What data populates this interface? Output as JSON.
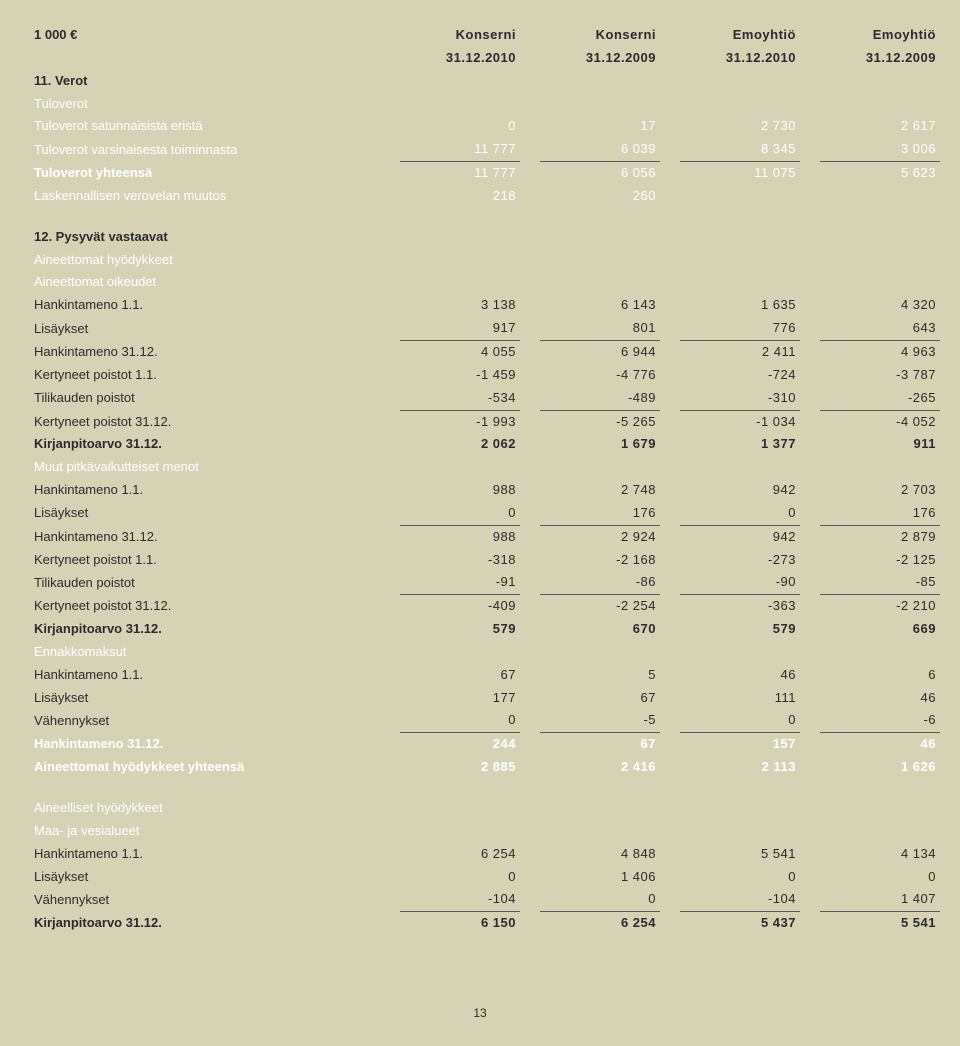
{
  "header": {
    "unit": "1 000 €",
    "cols": [
      {
        "top": "Konserni",
        "bot": "31.12.2010"
      },
      {
        "top": "Konserni",
        "bot": "31.12.2009"
      },
      {
        "top": "Emoyhtiö",
        "bot": "31.12.2010"
      },
      {
        "top": "Emoyhtiö",
        "bot": "31.12.2009"
      }
    ]
  },
  "s11": {
    "title": "11. Verot",
    "sub": "Tuloverot",
    "rows": [
      {
        "label": "Tuloverot satunnaisista eristä",
        "v": [
          "0",
          "17",
          "2 730",
          "2 617"
        ],
        "ul": false
      },
      {
        "label": "Tuloverot varsinaisesta toiminnasta",
        "v": [
          "11 777",
          "6 039",
          "8 345",
          "3 006"
        ],
        "ul": true
      }
    ],
    "total": {
      "label": "Tuloverot yhteensä",
      "v": [
        "11 777",
        "6 056",
        "11 075",
        "5 623"
      ]
    },
    "extra": {
      "label": "Laskennallisen verovelan muutos",
      "v": [
        "218",
        "260",
        "",
        ""
      ]
    }
  },
  "s12": {
    "title": "12. Pysyvät vastaavat",
    "g1": {
      "h1": "Aineettomat hyödykkeet",
      "h2": "Aineettomat oikeudet",
      "rows": [
        {
          "label": "Hankintameno 1.1.",
          "v": [
            "3 138",
            "6 143",
            "1 635",
            "4 320"
          ]
        },
        {
          "label": "Lisäykset",
          "v": [
            "917",
            "801",
            "776",
            "643"
          ],
          "ul": true
        },
        {
          "label": "Hankintameno 31.12.",
          "v": [
            "4 055",
            "6 944",
            "2 411",
            "4 963"
          ]
        },
        {
          "label": "Kertyneet poistot 1.1.",
          "v": [
            "-1 459",
            "-4 776",
            "-724",
            "-3 787"
          ]
        },
        {
          "label": "Tilikauden poistot",
          "v": [
            "-534",
            "-489",
            "-310",
            "-265"
          ],
          "ul": true
        },
        {
          "label": "Kertyneet poistot 31.12.",
          "v": [
            "-1 993",
            "-5 265",
            "-1 034",
            "-4 052"
          ]
        }
      ],
      "total": {
        "label": "Kirjanpitoarvo 31.12.",
        "v": [
          "2 062",
          "1 679",
          "1 377",
          "911"
        ]
      }
    },
    "g2": {
      "h": "Muut pitkävaikutteiset menot",
      "rows": [
        {
          "label": "Hankintameno 1.1.",
          "v": [
            "988",
            "2 748",
            "942",
            "2 703"
          ]
        },
        {
          "label": "Lisäykset",
          "v": [
            "0",
            "176",
            "0",
            "176"
          ],
          "ul": true
        },
        {
          "label": "Hankintameno 31.12.",
          "v": [
            "988",
            "2 924",
            "942",
            "2 879"
          ]
        },
        {
          "label": "Kertyneet poistot 1.1.",
          "v": [
            "-318",
            "-2 168",
            "-273",
            "-2 125"
          ]
        },
        {
          "label": "Tilikauden poistot",
          "v": [
            "-91",
            "-86",
            "-90",
            "-85"
          ],
          "ul": true
        },
        {
          "label": "Kertyneet poistot 31.12.",
          "v": [
            "-409",
            "-2 254",
            "-363",
            "-2 210"
          ]
        }
      ],
      "total": {
        "label": "Kirjanpitoarvo 31.12.",
        "v": [
          "579",
          "670",
          "579",
          "669"
        ]
      }
    },
    "g3": {
      "h": "Ennakkomaksut",
      "rows": [
        {
          "label": "Hankintameno 1.1.",
          "v": [
            "67",
            "5",
            "46",
            "6"
          ]
        },
        {
          "label": "Lisäykset",
          "v": [
            "177",
            "67",
            "111",
            "46"
          ]
        },
        {
          "label": "Vähennykset",
          "v": [
            "0",
            "-5",
            "0",
            "-6"
          ],
          "ul": true
        }
      ],
      "total": {
        "label": "Hankintameno 31.12.",
        "v": [
          "244",
          "67",
          "157",
          "46"
        ]
      }
    },
    "grand": {
      "label": "Aineettomat hyödykkeet yhteensä",
      "v": [
        "2 885",
        "2 416",
        "2 113",
        "1 626"
      ]
    }
  },
  "s13": {
    "h1": "Aineelliset hyödykkeet",
    "h2": "Maa- ja vesialueet",
    "rows": [
      {
        "label": "Hankintameno 1.1.",
        "v": [
          "6 254",
          "4 848",
          "5 541",
          "4 134"
        ]
      },
      {
        "label": "Lisäykset",
        "v": [
          "0",
          "1 406",
          "0",
          "0"
        ]
      },
      {
        "label": "Vähennykset",
        "v": [
          "-104",
          "0",
          "-104",
          "1 407"
        ],
        "ul": true
      }
    ],
    "total": {
      "label": "Kirjanpitoarvo 31.12.",
      "v": [
        "6 150",
        "6 254",
        "5 437",
        "5 541"
      ]
    }
  },
  "page": "13"
}
